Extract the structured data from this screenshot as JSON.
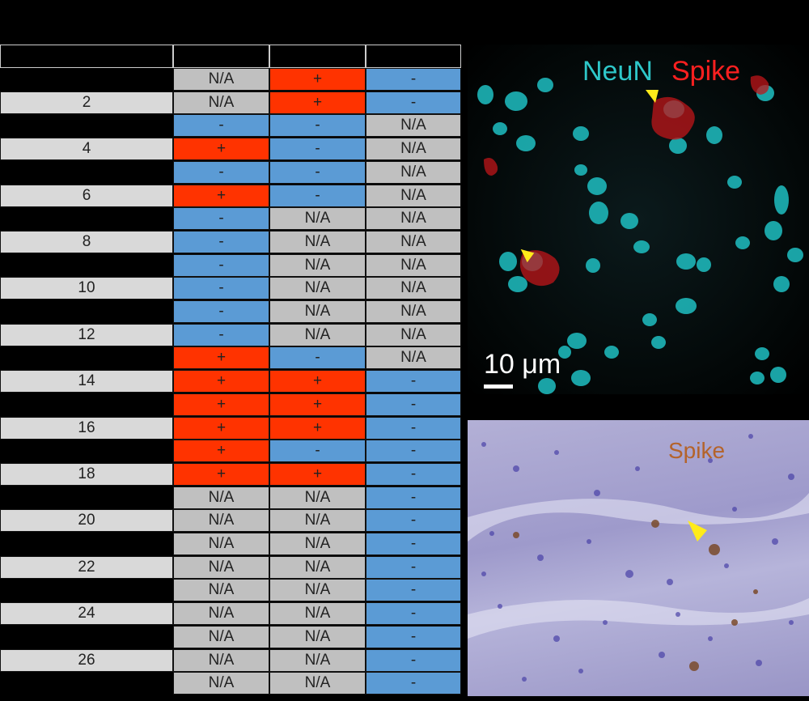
{
  "rows": [
    {
      "id": "",
      "a": "N/A",
      "b": "+",
      "c": "-"
    },
    {
      "id": "2",
      "a": "N/A",
      "b": "+",
      "c": "-"
    },
    {
      "id": "",
      "a": "-",
      "b": "-",
      "c": "N/A"
    },
    {
      "id": "4",
      "a": "+",
      "b": "-",
      "c": "N/A"
    },
    {
      "id": "",
      "a": "-",
      "b": "-",
      "c": "N/A"
    },
    {
      "id": "6",
      "a": "+",
      "b": "-",
      "c": "N/A"
    },
    {
      "id": "",
      "a": "-",
      "b": "N/A",
      "c": "N/A"
    },
    {
      "id": "8",
      "a": "-",
      "b": "N/A",
      "c": "N/A"
    },
    {
      "id": "",
      "a": "-",
      "b": "N/A",
      "c": "N/A"
    },
    {
      "id": "10",
      "a": "-",
      "b": "N/A",
      "c": "N/A"
    },
    {
      "id": "",
      "a": "-",
      "b": "N/A",
      "c": "N/A"
    },
    {
      "id": "12",
      "a": "-",
      "b": "N/A",
      "c": "N/A"
    },
    {
      "id": "",
      "a": "+",
      "b": "-",
      "c": "N/A"
    },
    {
      "id": "14",
      "a": "+",
      "b": "+",
      "c": "-"
    },
    {
      "id": "",
      "a": "+",
      "b": "+",
      "c": "-"
    },
    {
      "id": "16",
      "a": "+",
      "b": "+",
      "c": "-"
    },
    {
      "id": "",
      "a": "+",
      "b": "-",
      "c": "-"
    },
    {
      "id": "18",
      "a": "+",
      "b": "+",
      "c": "-"
    },
    {
      "id": "",
      "a": "N/A",
      "b": "N/A",
      "c": "-"
    },
    {
      "id": "20",
      "a": "N/A",
      "b": "N/A",
      "c": "-"
    },
    {
      "id": "",
      "a": "N/A",
      "b": "N/A",
      "c": "-"
    },
    {
      "id": "22",
      "a": "N/A",
      "b": "N/A",
      "c": "-"
    },
    {
      "id": "",
      "a": "N/A",
      "b": "N/A",
      "c": "-"
    },
    {
      "id": "24",
      "a": "N/A",
      "b": "N/A",
      "c": "-"
    },
    {
      "id": "",
      "a": "N/A",
      "b": "N/A",
      "c": "-"
    },
    {
      "id": "26",
      "a": "N/A",
      "b": "N/A",
      "c": "-"
    },
    {
      "id": "",
      "a": "N/A",
      "b": "N/A",
      "c": "-"
    }
  ],
  "colors": {
    "positive": "#ff3300",
    "negative": "#5b9bd5",
    "na": "#c0c0c0",
    "id_bg": "#d9d9d9"
  },
  "fluorescence": {
    "label_neun": "NeuN",
    "label_spike": "Spike",
    "scale_bar": "10 μm",
    "marker": "yellow-arrowhead"
  },
  "ihc": {
    "label_spike": "Spike",
    "marker": "yellow-arrowhead"
  }
}
